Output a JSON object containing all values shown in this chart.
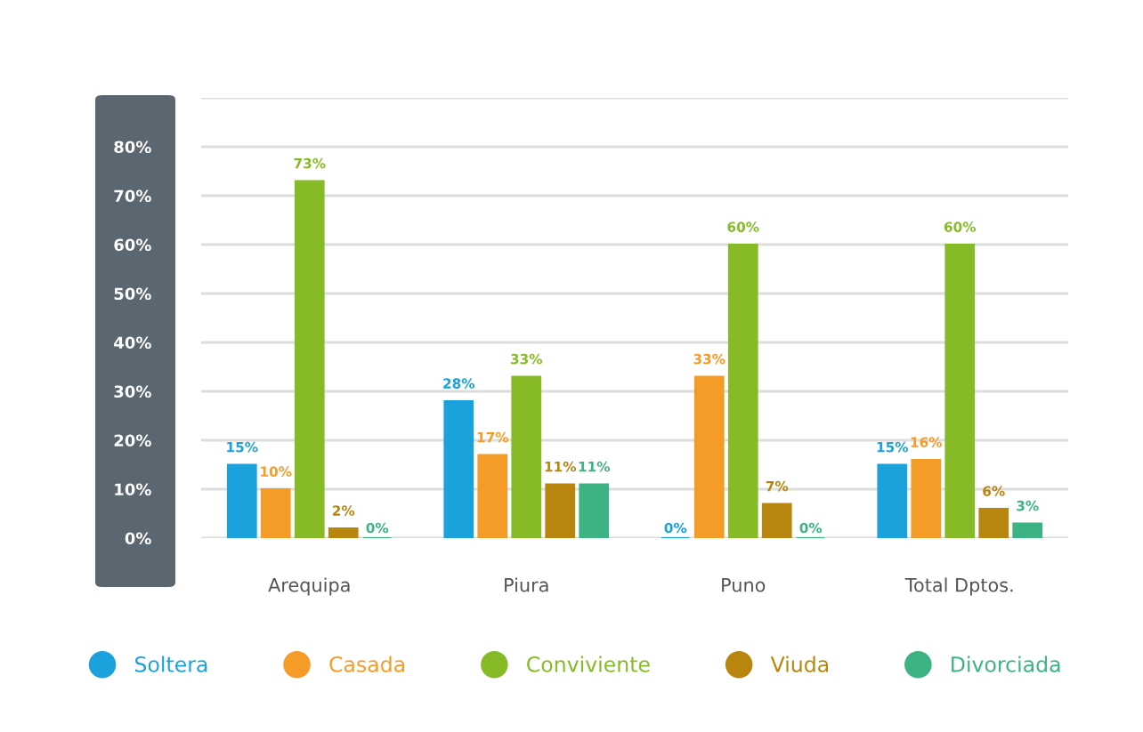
{
  "chart_data": {
    "type": "bar",
    "categories": [
      "Arequipa",
      "Piura",
      "Puno",
      "Total Dptos."
    ],
    "series": [
      {
        "name": "Soltera",
        "color": "#1ba1dc",
        "values": [
          15,
          28,
          0,
          15
        ],
        "value_labels": [
          "15%",
          "28%",
          "0%",
          "15%"
        ]
      },
      {
        "name": "Casada",
        "color": "#f59b28",
        "values": [
          10,
          17,
          33,
          16
        ],
        "value_labels": [
          "10%",
          "17%",
          "33%",
          "16%"
        ]
      },
      {
        "name": "Conviviente",
        "color": "#86bb27",
        "values": [
          73,
          33,
          60,
          60
        ],
        "value_labels": [
          "73%",
          "33%",
          "60%",
          "60%"
        ]
      },
      {
        "name": "Viuda",
        "color": "#b8860f",
        "values": [
          2,
          11,
          7,
          6
        ],
        "value_labels": [
          "2%",
          "11%",
          "7%",
          "6%"
        ]
      },
      {
        "name": "Divorciada",
        "color": "#3db384",
        "values": [
          0,
          11,
          0,
          3
        ],
        "value_labels": [
          "0%",
          "11%",
          "0%",
          "3%"
        ]
      }
    ],
    "ylim": [
      0,
      90
    ],
    "yticks": [
      {
        "value": 0,
        "label": "0%"
      },
      {
        "value": 10,
        "label": "10%"
      },
      {
        "value": 20,
        "label": "20%"
      },
      {
        "value": 30,
        "label": "30%"
      },
      {
        "value": 40,
        "label": "40%"
      },
      {
        "value": 50,
        "label": "50%"
      },
      {
        "value": 60,
        "label": "60%"
      },
      {
        "value": 70,
        "label": "70%"
      },
      {
        "value": 80,
        "label": "80%"
      },
      {
        "value": 90,
        "label": null
      }
    ],
    "grid": "y",
    "legend": "bottom"
  }
}
